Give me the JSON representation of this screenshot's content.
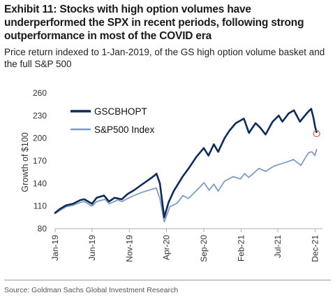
{
  "header": {
    "title": "Exhibit 11: Stocks with high option volumes have underperformed the SPX in recent periods, following strong outperformance in most of the COVID era",
    "subtitle": "Price return indexed to 1-Jan-2019, of the GS high option volume basket and the full S&P 500"
  },
  "footer": {
    "source": "Source: Goldman Sachs Global Investment Research"
  },
  "colors": {
    "gscbhopt": "#0f2a57",
    "sp500": "#7f9bc4",
    "marker": "#d9534f",
    "axis": "#b0b0b0"
  },
  "chart_data": {
    "type": "line",
    "title": "",
    "xlabel": "",
    "ylabel": "Growth of $100",
    "ylim": [
      80,
      260
    ],
    "yticks": [
      80,
      110,
      140,
      170,
      200,
      230,
      260
    ],
    "xlim": [
      "2019-01-01",
      "2021-12-31"
    ],
    "xticks": [
      {
        "label": "Jan-19",
        "date": "2019-01-01"
      },
      {
        "label": "Jun-19",
        "date": "2019-06-01"
      },
      {
        "label": "Nov-19",
        "date": "2019-11-01"
      },
      {
        "label": "Apr-20",
        "date": "2020-04-01"
      },
      {
        "label": "Sep-20",
        "date": "2020-09-01"
      },
      {
        "label": "Feb-21",
        "date": "2021-02-01"
      },
      {
        "label": "Jul-21",
        "date": "2021-07-01"
      },
      {
        "label": "Dec-21",
        "date": "2021-12-01"
      }
    ],
    "grid": false,
    "legend": "top-left",
    "series": [
      {
        "name": "GSCBHOPT",
        "points": [
          [
            "2019-01-01",
            101
          ],
          [
            "2019-01-20",
            106
          ],
          [
            "2019-02-15",
            111
          ],
          [
            "2019-03-15",
            113
          ],
          [
            "2019-04-15",
            118
          ],
          [
            "2019-05-01",
            119
          ],
          [
            "2019-06-01",
            113
          ],
          [
            "2019-06-20",
            121
          ],
          [
            "2019-07-20",
            124
          ],
          [
            "2019-08-10",
            116
          ],
          [
            "2019-09-01",
            121
          ],
          [
            "2019-10-01",
            119
          ],
          [
            "2019-10-25",
            126
          ],
          [
            "2019-11-20",
            131
          ],
          [
            "2019-12-20",
            138
          ],
          [
            "2020-01-20",
            145
          ],
          [
            "2020-02-10",
            150
          ],
          [
            "2020-02-20",
            153
          ],
          [
            "2020-03-05",
            140
          ],
          [
            "2020-03-23",
            95
          ],
          [
            "2020-04-10",
            115
          ],
          [
            "2020-05-01",
            130
          ],
          [
            "2020-06-08",
            150
          ],
          [
            "2020-07-01",
            160
          ],
          [
            "2020-08-01",
            175
          ],
          [
            "2020-09-01",
            187
          ],
          [
            "2020-09-20",
            177
          ],
          [
            "2020-10-12",
            192
          ],
          [
            "2020-10-30",
            182
          ],
          [
            "2020-11-25",
            200
          ],
          [
            "2020-12-15",
            210
          ],
          [
            "2021-01-10",
            220
          ],
          [
            "2021-02-12",
            226
          ],
          [
            "2021-03-05",
            207
          ],
          [
            "2021-04-01",
            220
          ],
          [
            "2021-04-20",
            214
          ],
          [
            "2021-05-12",
            205
          ],
          [
            "2021-06-10",
            222
          ],
          [
            "2021-07-05",
            230
          ],
          [
            "2021-07-20",
            222
          ],
          [
            "2021-08-15",
            233
          ],
          [
            "2021-09-05",
            237
          ],
          [
            "2021-09-30",
            222
          ],
          [
            "2021-10-20",
            230
          ],
          [
            "2021-11-05",
            236
          ],
          [
            "2021-11-15",
            239
          ],
          [
            "2021-11-25",
            226
          ],
          [
            "2021-12-01",
            215
          ],
          [
            "2021-12-07",
            208
          ]
        ]
      },
      {
        "name": "S&P500 Index",
        "points": [
          [
            "2019-01-01",
            100
          ],
          [
            "2019-01-20",
            104
          ],
          [
            "2019-02-15",
            109
          ],
          [
            "2019-03-15",
            111
          ],
          [
            "2019-04-15",
            115
          ],
          [
            "2019-05-01",
            116
          ],
          [
            "2019-06-01",
            110
          ],
          [
            "2019-06-20",
            116
          ],
          [
            "2019-07-25",
            119
          ],
          [
            "2019-08-10",
            113
          ],
          [
            "2019-09-15",
            118
          ],
          [
            "2019-10-01",
            116
          ],
          [
            "2019-10-25",
            120
          ],
          [
            "2019-11-20",
            124
          ],
          [
            "2019-12-20",
            128
          ],
          [
            "2020-01-20",
            131
          ],
          [
            "2020-02-19",
            134
          ],
          [
            "2020-03-05",
            120
          ],
          [
            "2020-03-23",
            89
          ],
          [
            "2020-04-15",
            109
          ],
          [
            "2020-05-15",
            114
          ],
          [
            "2020-06-08",
            124
          ],
          [
            "2020-06-30",
            120
          ],
          [
            "2020-07-31",
            130
          ],
          [
            "2020-09-02",
            141
          ],
          [
            "2020-09-23",
            131
          ],
          [
            "2020-10-12",
            139
          ],
          [
            "2020-10-30",
            130
          ],
          [
            "2020-11-25",
            143
          ],
          [
            "2020-12-31",
            149
          ],
          [
            "2021-01-29",
            146
          ],
          [
            "2021-02-15",
            153
          ],
          [
            "2021-03-04",
            148
          ],
          [
            "2021-04-15",
            160
          ],
          [
            "2021-05-12",
            156
          ],
          [
            "2021-06-15",
            163
          ],
          [
            "2021-07-15",
            166
          ],
          [
            "2021-08-30",
            171
          ],
          [
            "2021-09-02",
            172
          ],
          [
            "2021-10-04",
            164
          ],
          [
            "2021-10-20",
            173
          ],
          [
            "2021-11-05",
            181
          ],
          [
            "2021-11-18",
            182
          ],
          [
            "2021-11-30",
            177
          ],
          [
            "2021-12-07",
            185
          ]
        ]
      }
    ]
  }
}
